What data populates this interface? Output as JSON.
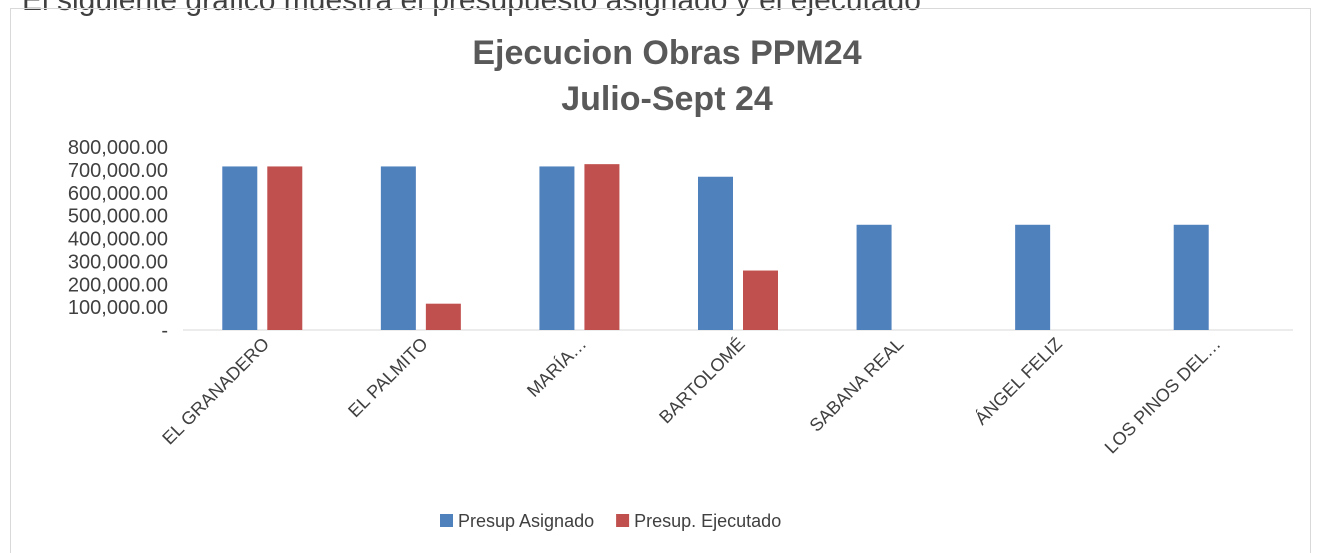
{
  "intro": "El siguiente gráfico muestra el presupuesto asignado y el ejecutado",
  "chart_data": {
    "type": "bar",
    "title": [
      "Ejecucion Obras PPM24",
      "Julio-Sept 24"
    ],
    "categories": [
      "EL GRANADERO",
      "EL PALMITO",
      "MARÍA…",
      "BARTOLOMÉ",
      "SABANA REAL",
      "ÁNGEL FELIZ",
      "LOS PINOS DEL…"
    ],
    "series": [
      {
        "name": "Presup Asignado",
        "color": "#4f81bd",
        "values": [
          715000,
          715000,
          715000,
          670000,
          460000,
          460000,
          460000
        ]
      },
      {
        "name": "Presup. Ejecutado",
        "color": "#c0504d",
        "values": [
          715000,
          115000,
          725000,
          260000,
          null,
          null,
          null
        ]
      }
    ],
    "ylim": [
      0,
      800000
    ],
    "yticks": [
      {
        "value": 0,
        "label": "-"
      },
      {
        "value": 100000,
        "label": "100,000.00"
      },
      {
        "value": 200000,
        "label": "200,000.00"
      },
      {
        "value": 300000,
        "label": "300,000.00"
      },
      {
        "value": 400000,
        "label": "400,000.00"
      },
      {
        "value": 500000,
        "label": "500,000.00"
      },
      {
        "value": 600000,
        "label": "600,000.00"
      },
      {
        "value": 700000,
        "label": "700,000.00"
      },
      {
        "value": 800000,
        "label": "800,000.00"
      }
    ],
    "grid": false,
    "legend": "bottom"
  }
}
